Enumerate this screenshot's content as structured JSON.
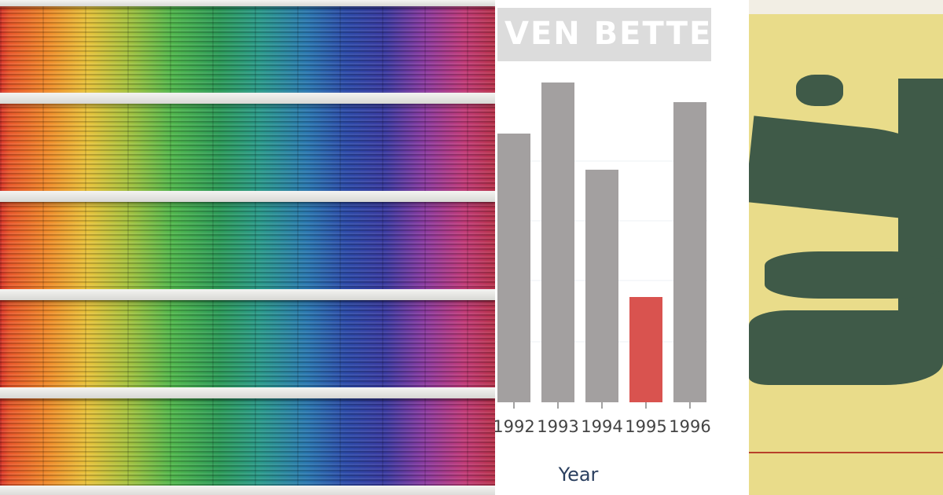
{
  "chart_data": {
    "type": "bar",
    "title": "VEN BETTER",
    "x_label": "Year",
    "categories": [
      "1992",
      "1993",
      "1994",
      "1995",
      "1996"
    ],
    "values": [
      342,
      407,
      296,
      134,
      382
    ],
    "colors": [
      "#a3a0a0",
      "#a3a0a0",
      "#a3a0a0",
      "#d9534f",
      "#a3a0a0"
    ],
    "ylim": [
      0,
      420
    ],
    "grid": true
  }
}
